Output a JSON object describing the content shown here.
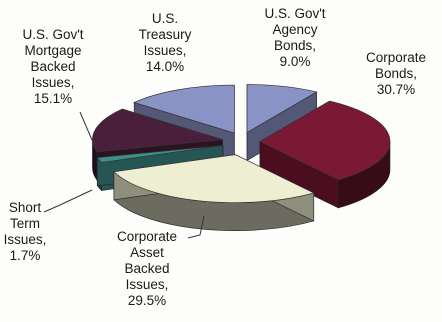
{
  "chart_data": {
    "type": "pie",
    "title": "",
    "style": "3d-exploded",
    "slices": [
      {
        "label": "U.S. Gov't Agency Bonds",
        "value": 9.0,
        "color": "#8a93c6"
      },
      {
        "label": "Corporate Bonds",
        "value": 30.7,
        "color": "#7b1834"
      },
      {
        "label": "Corporate Asset Backed Issues",
        "value": 29.5,
        "color": "#eeeed2"
      },
      {
        "label": "Short Term Issues",
        "value": 1.7,
        "color": "#3e8f8a"
      },
      {
        "label": "U.S. Gov't Mortgage Backed Issues",
        "value": 15.1,
        "color": "#4a1f3b"
      },
      {
        "label": "U.S. Treasury Issues",
        "value": 14.0,
        "color": "#8a93c6"
      }
    ],
    "labels": [
      {
        "text": "U.S. Gov't\nAgency\nBonds,\n9.0%"
      },
      {
        "text": "Corporate\nBonds,\n30.7%"
      },
      {
        "text": "Corporate\nAsset\nBacked\nIssues,\n29.5%"
      },
      {
        "text": "Short\nTerm\nIssues,\n1.7%"
      },
      {
        "text": "U.S. Gov't\nMortgage\nBacked\nIssues,\n15.1%"
      },
      {
        "text": "U.S.\nTreasury\nIssues,\n14.0%"
      }
    ]
  }
}
